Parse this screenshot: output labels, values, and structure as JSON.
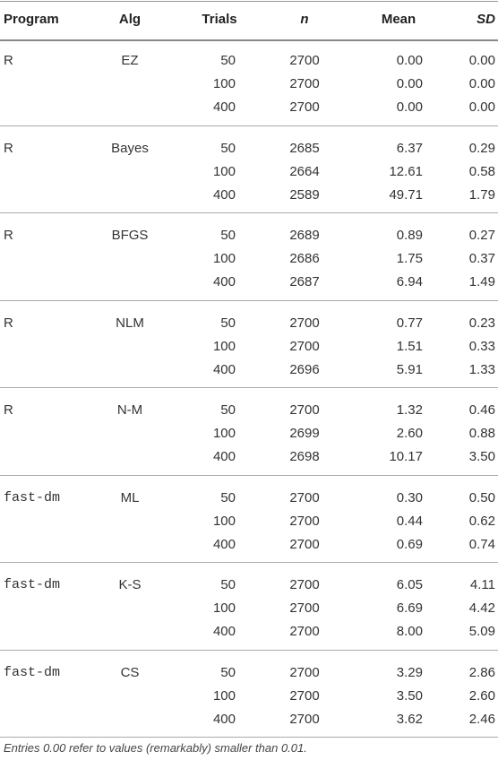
{
  "table": {
    "header": [
      "Program",
      "Alg",
      "Trials",
      "n",
      "Mean",
      "SD"
    ],
    "groups": [
      {
        "program": "R",
        "monospace": false,
        "alg": "EZ",
        "rows": [
          [
            "50",
            "2700",
            "0.00",
            "0.00"
          ],
          [
            "100",
            "2700",
            "0.00",
            "0.00"
          ],
          [
            "400",
            "2700",
            "0.00",
            "0.00"
          ]
        ]
      },
      {
        "program": "R",
        "monospace": false,
        "alg": "Bayes",
        "rows": [
          [
            "50",
            "2685",
            "6.37",
            "0.29"
          ],
          [
            "100",
            "2664",
            "12.61",
            "0.58"
          ],
          [
            "400",
            "2589",
            "49.71",
            "1.79"
          ]
        ]
      },
      {
        "program": "R",
        "monospace": false,
        "alg": "BFGS",
        "rows": [
          [
            "50",
            "2689",
            "0.89",
            "0.27"
          ],
          [
            "100",
            "2686",
            "1.75",
            "0.37"
          ],
          [
            "400",
            "2687",
            "6.94",
            "1.49"
          ]
        ]
      },
      {
        "program": "R",
        "monospace": false,
        "alg": "NLM",
        "rows": [
          [
            "50",
            "2700",
            "0.77",
            "0.23"
          ],
          [
            "100",
            "2700",
            "1.51",
            "0.33"
          ],
          [
            "400",
            "2696",
            "5.91",
            "1.33"
          ]
        ]
      },
      {
        "program": "R",
        "monospace": false,
        "alg": "N-M",
        "rows": [
          [
            "50",
            "2700",
            "1.32",
            "0.46"
          ],
          [
            "100",
            "2699",
            "2.60",
            "0.88"
          ],
          [
            "400",
            "2698",
            "10.17",
            "3.50"
          ]
        ]
      },
      {
        "program": "fast-dm",
        "monospace": true,
        "alg": "ML",
        "rows": [
          [
            "50",
            "2700",
            "0.30",
            "0.50"
          ],
          [
            "100",
            "2700",
            "0.44",
            "0.62"
          ],
          [
            "400",
            "2700",
            "0.69",
            "0.74"
          ]
        ]
      },
      {
        "program": "fast-dm",
        "monospace": true,
        "alg": "K-S",
        "rows": [
          [
            "50",
            "2700",
            "6.05",
            "4.11"
          ],
          [
            "100",
            "2700",
            "6.69",
            "4.42"
          ],
          [
            "400",
            "2700",
            "8.00",
            "5.09"
          ]
        ]
      },
      {
        "program": "fast-dm",
        "monospace": true,
        "alg": "CS",
        "rows": [
          [
            "50",
            "2700",
            "3.29",
            "2.86"
          ],
          [
            "100",
            "2700",
            "3.50",
            "2.60"
          ],
          [
            "400",
            "2700",
            "3.62",
            "2.46"
          ]
        ]
      }
    ],
    "footnote": "Entries 0.00 refer to values (remarkably) smaller than 0.01."
  }
}
